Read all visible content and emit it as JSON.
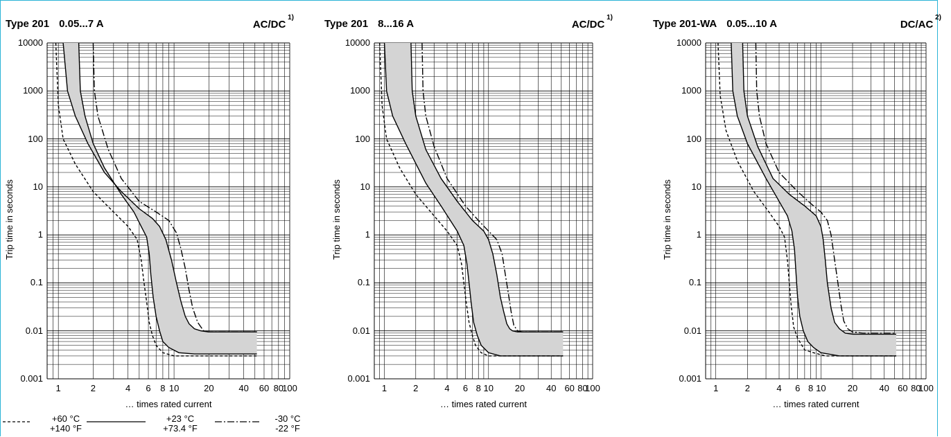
{
  "chart_data": [
    {
      "type": "area",
      "title_type": "Type 201",
      "title_range": "0.05...7 A",
      "title_current": "AC/DC",
      "title_footnote": "1)",
      "ylabel": "Trip time in seconds",
      "xlabel": "… times rated current",
      "xscale": "log",
      "yscale": "log",
      "xlim": [
        0.8,
        100
      ],
      "ylim": [
        0.001,
        10000
      ],
      "xticks": [
        "1",
        "2",
        "4",
        "6",
        "8",
        "10",
        "20",
        "40",
        "60",
        "80",
        "100"
      ],
      "yticks": [
        "10000",
        "1000",
        "100",
        "10",
        "1",
        "0.1",
        "0.01",
        "0.001"
      ],
      "grid": true,
      "series": [
        {
          "style": "solid",
          "x": [
            1.1,
            1.2,
            1.4,
            1.8,
            2.5,
            3.5,
            5,
            6.5,
            7.5,
            8.5,
            9.5,
            10.5,
            11.5,
            12.5,
            13.5,
            15,
            17,
            20,
            25,
            52
          ],
          "y": [
            10000,
            1000,
            300,
            80,
            20,
            8,
            3.5,
            2.2,
            1.5,
            0.8,
            0.3,
            0.1,
            0.04,
            0.02,
            0.014,
            0.011,
            0.01,
            0.0095,
            0.0095,
            0.0095
          ]
        },
        {
          "style": "solid",
          "x": [
            1.5,
            1.55,
            1.7,
            2,
            2.5,
            3.5,
            4.5,
            5.2,
            5.8,
            6.1,
            6.3,
            6.6,
            7,
            7.5,
            8,
            9,
            11,
            15,
            25,
            52
          ],
          "y": [
            10000,
            1000,
            300,
            80,
            25,
            7,
            3,
            1.5,
            0.9,
            0.4,
            0.15,
            0.05,
            0.02,
            0.01,
            0.006,
            0.0045,
            0.0035,
            0.0033,
            0.0033,
            0.0033
          ]
        },
        {
          "style": "dashed",
          "x": [
            0.95,
            1.0,
            1.1,
            1.4,
            2,
            3,
            4,
            4.8,
            5.2,
            5.5,
            5.8,
            6.1,
            6.5,
            7,
            8,
            10,
            15,
            20,
            52
          ],
          "y": [
            10000,
            500,
            100,
            30,
            8,
            3,
            1.5,
            0.8,
            0.3,
            0.1,
            0.04,
            0.015,
            0.008,
            0.005,
            0.0035,
            0.003,
            0.003,
            0.003,
            0.003
          ]
        },
        {
          "style": "dashdot",
          "x": [
            2.0,
            2.05,
            2.2,
            2.7,
            3.5,
            5,
            7,
            9,
            10.5,
            11.5,
            12.5,
            13.5,
            14.5,
            16,
            18,
            20,
            22,
            25,
            52
          ],
          "y": [
            10000,
            1000,
            300,
            60,
            15,
            5,
            3,
            2,
            1.1,
            0.5,
            0.2,
            0.07,
            0.03,
            0.015,
            0.01,
            0.0095,
            0.0095,
            0.0095,
            0.0095
          ]
        }
      ]
    },
    {
      "type": "area",
      "title_type": "Type 201",
      "title_range": "8...16 A",
      "title_current": "AC/DC",
      "title_footnote": "1)",
      "ylabel": "Trip time in seconds",
      "xlabel": "… times rated current",
      "xscale": "log",
      "yscale": "log",
      "xlim": [
        0.8,
        100
      ],
      "ylim": [
        0.001,
        10000
      ],
      "xticks": [
        "1",
        "2",
        "4",
        "6",
        "8",
        "10",
        "20",
        "40",
        "60",
        "80",
        "100"
      ],
      "yticks": [
        "10000",
        "1000",
        "100",
        "10",
        "1",
        "0.1",
        "0.01",
        "0.001"
      ],
      "grid": true,
      "series": [
        {
          "style": "solid",
          "x": [
            1.8,
            1.85,
            2,
            2.5,
            3.5,
            5,
            7,
            9,
            10,
            11,
            12,
            13,
            14,
            15,
            16,
            17,
            19,
            22,
            52
          ],
          "y": [
            10000,
            1000,
            300,
            60,
            15,
            5,
            2,
            1.2,
            0.8,
            0.4,
            0.15,
            0.05,
            0.025,
            0.014,
            0.011,
            0.01,
            0.0095,
            0.0095,
            0.0095
          ]
        },
        {
          "style": "solid",
          "x": [
            1.0,
            1.05,
            1.2,
            1.6,
            2.5,
            3.5,
            5,
            5.8,
            6.2,
            6.5,
            6.8,
            7.2,
            7.8,
            8.5,
            10,
            13,
            20,
            52
          ],
          "y": [
            10000,
            1000,
            300,
            80,
            12,
            4,
            1.2,
            0.6,
            0.25,
            0.1,
            0.04,
            0.015,
            0.008,
            0.005,
            0.0035,
            0.003,
            0.003,
            0.003
          ]
        },
        {
          "style": "dashed",
          "x": [
            0.9,
            0.95,
            1.05,
            1.4,
            2,
            3,
            4,
            5,
            5.5,
            5.8,
            6.1,
            6.5,
            7,
            7.5,
            8.5,
            10,
            15,
            52
          ],
          "y": [
            10000,
            500,
            100,
            25,
            7,
            2.5,
            1.2,
            0.6,
            0.25,
            0.1,
            0.04,
            0.015,
            0.008,
            0.005,
            0.0035,
            0.003,
            0.003,
            0.003
          ]
        },
        {
          "style": "dashdot",
          "x": [
            2.3,
            2.35,
            2.5,
            3,
            4,
            6,
            8,
            10,
            12,
            13.5,
            14.5,
            15.5,
            16.5,
            17.5,
            19,
            21,
            25,
            52
          ],
          "y": [
            10000,
            1000,
            300,
            70,
            15,
            4,
            2,
            1.2,
            0.8,
            0.4,
            0.15,
            0.06,
            0.025,
            0.013,
            0.01,
            0.0095,
            0.0095,
            0.0095
          ]
        }
      ]
    },
    {
      "type": "area",
      "title_type": "Type 201-WA",
      "title_range": "0.05...10 A",
      "title_current": "DC/AC",
      "title_footnote": "2)",
      "ylabel": "Trip time in seconds",
      "xlabel": "… times rated current",
      "xscale": "log",
      "yscale": "log",
      "xlim": [
        0.8,
        100
      ],
      "ylim": [
        0.001,
        10000
      ],
      "xticks": [
        "1",
        "2",
        "4",
        "6",
        "8",
        "10",
        "20",
        "40",
        "60",
        "80",
        "100"
      ],
      "yticks": [
        "10000",
        "1000",
        "100",
        "10",
        "1",
        "0.1",
        "0.01",
        "0.001"
      ],
      "grid": true,
      "series": [
        {
          "style": "solid",
          "x": [
            1.8,
            1.85,
            2,
            2.5,
            3.5,
            5,
            7,
            9,
            10,
            10.5,
            11,
            11.5,
            12.5,
            13.5,
            15,
            17,
            20,
            25,
            52
          ],
          "y": [
            10000,
            1000,
            300,
            70,
            15,
            7,
            4,
            2.5,
            1.5,
            0.8,
            0.3,
            0.1,
            0.03,
            0.015,
            0.011,
            0.009,
            0.0085,
            0.0085,
            0.0085
          ]
        },
        {
          "style": "solid",
          "x": [
            1.4,
            1.45,
            1.6,
            2,
            3,
            4,
            4.8,
            5.3,
            5.6,
            5.8,
            6,
            6.3,
            6.8,
            7.5,
            8.5,
            10,
            15,
            52
          ],
          "y": [
            10000,
            1000,
            300,
            80,
            15,
            5,
            2.5,
            1.2,
            0.5,
            0.15,
            0.05,
            0.02,
            0.01,
            0.006,
            0.0045,
            0.0035,
            0.003,
            0.003
          ]
        },
        {
          "style": "dashed",
          "x": [
            1.05,
            1.1,
            1.25,
            1.6,
            2.3,
            3.2,
            4,
            4.5,
            4.8,
            5.0,
            5.2,
            5.5,
            6,
            7,
            8.5,
            11,
            15,
            52
          ],
          "y": [
            10000,
            800,
            150,
            35,
            8,
            3,
            1.5,
            0.9,
            0.3,
            0.1,
            0.035,
            0.012,
            0.007,
            0.004,
            0.0035,
            0.003,
            0.003,
            0.003
          ]
        },
        {
          "style": "dashdot",
          "x": [
            2.4,
            2.45,
            2.6,
            3,
            4,
            6,
            8,
            10,
            11.5,
            12.5,
            13.5,
            14.5,
            15.5,
            16.5,
            18,
            20,
            25,
            52
          ],
          "y": [
            10000,
            1000,
            300,
            80,
            20,
            8,
            4.5,
            3,
            2,
            1,
            0.3,
            0.1,
            0.035,
            0.016,
            0.011,
            0.0095,
            0.009,
            0.009
          ]
        }
      ]
    }
  ],
  "legend": [
    {
      "style": "dashed",
      "line1": "+60 °C",
      "line2": "+140 °F"
    },
    {
      "style": "solid",
      "line1": "+23 °C",
      "line2": "+73.4 °F"
    },
    {
      "style": "dashdot",
      "line1": "-30 °C",
      "line2": "-22 °F"
    }
  ],
  "colors": {
    "border": "#2ab3d6",
    "band": "#d4d4d4",
    "grid": "#000000"
  }
}
